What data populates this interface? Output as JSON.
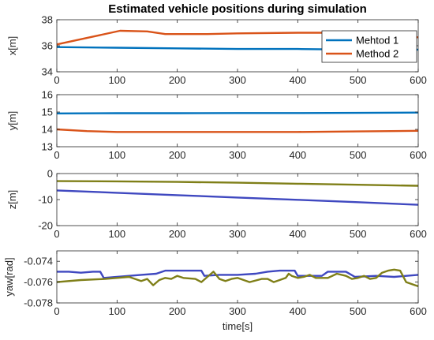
{
  "title": "Estimated vehicle positions during simulation",
  "xlabel": "time[s]",
  "legend": {
    "placement": "top-right",
    "entries": [
      {
        "label": "Mehtod 1",
        "color": "#0072BD"
      },
      {
        "label": "Method 2",
        "color": "#D95319"
      }
    ]
  },
  "chart_data": [
    {
      "type": "line",
      "ylabel": "x[m]",
      "xlim": [
        0,
        600
      ],
      "ylim": [
        34,
        38
      ],
      "xticks": [
        0,
        100,
        200,
        300,
        400,
        500,
        600
      ],
      "yticks": [
        34,
        36,
        38
      ],
      "series": [
        {
          "name": "Mehtod 1",
          "color": "#0072BD",
          "points": [
            [
              0,
              35.9
            ],
            [
              100,
              35.85
            ],
            [
              200,
              35.8
            ],
            [
              300,
              35.75
            ],
            [
              400,
              35.75
            ],
            [
              500,
              35.7
            ],
            [
              600,
              35.7
            ]
          ]
        },
        {
          "name": "Method 2",
          "color": "#D95319",
          "points": [
            [
              0,
              36.1
            ],
            [
              50,
              36.6
            ],
            [
              105,
              37.15
            ],
            [
              150,
              37.1
            ],
            [
              180,
              36.9
            ],
            [
              250,
              36.9
            ],
            [
              300,
              36.95
            ],
            [
              400,
              37.0
            ],
            [
              500,
              37.0
            ],
            [
              580,
              36.7
            ],
            [
              600,
              36.65
            ]
          ]
        }
      ]
    },
    {
      "type": "line",
      "ylabel": "y[m]",
      "xlim": [
        0,
        600
      ],
      "ylim": [
        13,
        16
      ],
      "xticks": [
        0,
        100,
        200,
        300,
        400,
        500,
        600
      ],
      "yticks": [
        13,
        14,
        15,
        16
      ],
      "series": [
        {
          "color": "#0072BD",
          "points": [
            [
              0,
              14.92
            ],
            [
              100,
              14.93
            ],
            [
              200,
              14.93
            ],
            [
              300,
              14.94
            ],
            [
              400,
              14.94
            ],
            [
              500,
              14.95
            ],
            [
              600,
              14.97
            ]
          ]
        },
        {
          "color": "#D95319",
          "points": [
            [
              0,
              14.0
            ],
            [
              50,
              13.9
            ],
            [
              100,
              13.85
            ],
            [
              200,
              13.85
            ],
            [
              300,
              13.85
            ],
            [
              400,
              13.85
            ],
            [
              500,
              13.88
            ],
            [
              600,
              13.92
            ]
          ]
        }
      ]
    },
    {
      "type": "line",
      "ylabel": "z[m]",
      "xlim": [
        0,
        600
      ],
      "ylim": [
        -20,
        0
      ],
      "xticks": [
        0,
        100,
        200,
        300,
        400,
        500,
        600
      ],
      "yticks": [
        -20,
        -10,
        0
      ],
      "series": [
        {
          "color": "#3F48C0",
          "points": [
            [
              0,
              -6.5
            ],
            [
              100,
              -7.4
            ],
            [
              200,
              -8.3
            ],
            [
              300,
              -9.2
            ],
            [
              400,
              -10.1
            ],
            [
              500,
              -11.0
            ],
            [
              600,
              -12.0
            ]
          ]
        },
        {
          "color": "#7F7F18",
          "points": [
            [
              0,
              -2.9
            ],
            [
              100,
              -3.0
            ],
            [
              200,
              -3.2
            ],
            [
              300,
              -3.5
            ],
            [
              400,
              -3.9
            ],
            [
              500,
              -4.3
            ],
            [
              600,
              -4.7
            ]
          ]
        }
      ]
    },
    {
      "type": "line",
      "ylabel": "yaw[rad]",
      "xlim": [
        0,
        600
      ],
      "ylim": [
        -0.078,
        -0.073
      ],
      "xticks": [
        0,
        100,
        200,
        300,
        400,
        500,
        600
      ],
      "yticks": [
        -0.078,
        -0.076,
        -0.074
      ],
      "xlabel": "time[s]",
      "series": [
        {
          "color": "#3F48C0",
          "points": [
            [
              0,
              -0.075
            ],
            [
              20,
              -0.075
            ],
            [
              40,
              -0.0751
            ],
            [
              60,
              -0.075
            ],
            [
              72,
              -0.075
            ],
            [
              78,
              -0.0756
            ],
            [
              100,
              -0.0755
            ],
            [
              120,
              -0.0754
            ],
            [
              140,
              -0.0753
            ],
            [
              165,
              -0.0752
            ],
            [
              180,
              -0.0749
            ],
            [
              240,
              -0.0749
            ],
            [
              245,
              -0.0754
            ],
            [
              270,
              -0.0753
            ],
            [
              300,
              -0.0753
            ],
            [
              330,
              -0.0752
            ],
            [
              350,
              -0.075
            ],
            [
              370,
              -0.0749
            ],
            [
              395,
              -0.0749
            ],
            [
              400,
              -0.0754
            ],
            [
              440,
              -0.0754
            ],
            [
              450,
              -0.075
            ],
            [
              480,
              -0.075
            ],
            [
              495,
              -0.0755
            ],
            [
              530,
              -0.0754
            ],
            [
              560,
              -0.0755
            ],
            [
              580,
              -0.0754
            ],
            [
              600,
              -0.0753
            ]
          ]
        },
        {
          "color": "#7F7F18",
          "points": [
            [
              0,
              -0.076
            ],
            [
              40,
              -0.0758
            ],
            [
              80,
              -0.0757
            ],
            [
              100,
              -0.0756
            ],
            [
              120,
              -0.0755
            ],
            [
              130,
              -0.0757
            ],
            [
              140,
              -0.0759
            ],
            [
              150,
              -0.0757
            ],
            [
              160,
              -0.0763
            ],
            [
              170,
              -0.0758
            ],
            [
              180,
              -0.0756
            ],
            [
              190,
              -0.0757
            ],
            [
              200,
              -0.0754
            ],
            [
              210,
              -0.0756
            ],
            [
              230,
              -0.0757
            ],
            [
              240,
              -0.076
            ],
            [
              250,
              -0.0755
            ],
            [
              260,
              -0.075
            ],
            [
              270,
              -0.0757
            ],
            [
              280,
              -0.0759
            ],
            [
              290,
              -0.0757
            ],
            [
              300,
              -0.0756
            ],
            [
              320,
              -0.076
            ],
            [
              340,
              -0.0757
            ],
            [
              350,
              -0.0757
            ],
            [
              360,
              -0.076
            ],
            [
              370,
              -0.0758
            ],
            [
              380,
              -0.0756
            ],
            [
              385,
              -0.0752
            ],
            [
              390,
              -0.0754
            ],
            [
              400,
              -0.0756
            ],
            [
              410,
              -0.0755
            ],
            [
              420,
              -0.0753
            ],
            [
              430,
              -0.0756
            ],
            [
              450,
              -0.0756
            ],
            [
              465,
              -0.0752
            ],
            [
              480,
              -0.0754
            ],
            [
              490,
              -0.0757
            ],
            [
              500,
              -0.0756
            ],
            [
              510,
              -0.0754
            ],
            [
              520,
              -0.0757
            ],
            [
              530,
              -0.0756
            ],
            [
              540,
              -0.0751
            ],
            [
              550,
              -0.0749
            ],
            [
              560,
              -0.0748
            ],
            [
              570,
              -0.0749
            ],
            [
              580,
              -0.076
            ],
            [
              595,
              -0.0763
            ],
            [
              600,
              -0.0764
            ]
          ]
        }
      ]
    }
  ]
}
